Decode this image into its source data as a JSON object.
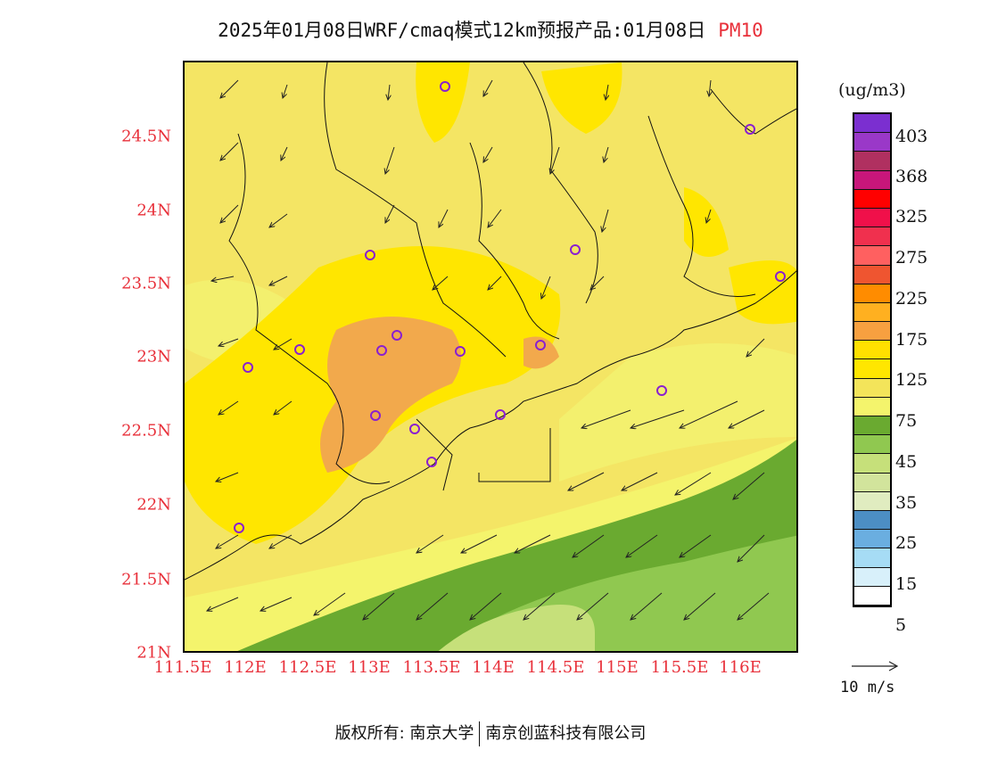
{
  "title": {
    "text": "2025年01月08日WRF/cmaq模式12km预报产品:01月08日",
    "variable": "PM10"
  },
  "map": {
    "y_ticks": [
      "24.5N",
      "24N",
      "23.5N",
      "23N",
      "22.5N",
      "22N",
      "21.5N",
      "21N"
    ],
    "x_ticks": [
      "111.5E",
      "112E",
      "112.5E",
      "113E",
      "113.5E",
      "114E",
      "114.5E",
      "115E",
      "115.5E",
      "116E"
    ],
    "stations": [
      "station",
      "station",
      "station",
      "station",
      "station",
      "station",
      "station",
      "station",
      "station",
      "station",
      "station",
      "station",
      "station",
      "station",
      "station",
      "station",
      "station"
    ]
  },
  "colorbar": {
    "unit": "(ug/m3)",
    "labels": [
      "403",
      "368",
      "325",
      "275",
      "225",
      "175",
      "125",
      "75",
      "45",
      "35",
      "25",
      "15",
      "5"
    ],
    "colors": [
      "#7b2fd0",
      "#9a38c8",
      "#b03060",
      "#c8167a",
      "#ff0000",
      "#f0104a",
      "#f0304e",
      "#ff6060",
      "#ef5530",
      "#ff8c00",
      "#ffb020",
      "#f7a040",
      "#ffe000",
      "#ffe600",
      "#f3e45a",
      "#f4f46c",
      "#6aaa30",
      "#90c850",
      "#c6e07a",
      "#d2e49c",
      "#e0ecc0",
      "#4c8ec4",
      "#6aaee0",
      "#a6dcf5",
      "#d8f0fa",
      "#ffffff"
    ]
  },
  "vector": {
    "label": "10 m/s"
  },
  "footer": {
    "left": "版权所有: 南京大学",
    "right": "南京创蓝科技有限公司"
  }
}
